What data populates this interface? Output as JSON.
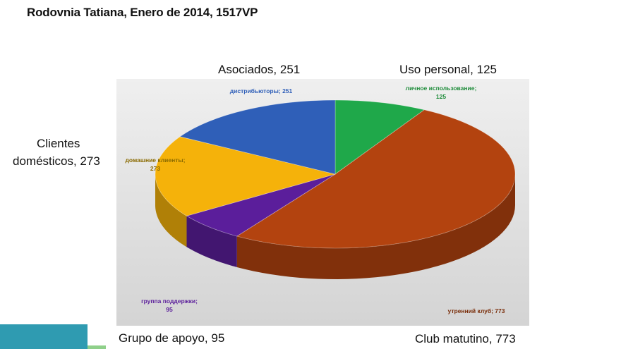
{
  "title": "Rodovnia Tatiana, Enero de 2014, 1517VP",
  "annotations": {
    "asociados": "Asociados, 251",
    "uso_personal": "Uso personal, 125",
    "clientes_line1": "Clientes",
    "clientes_line2": "domésticos, 273",
    "grupo": "Grupo de apoyo, 95",
    "club": "Club matutino, 773"
  },
  "chart_data": {
    "type": "pie",
    "title": "",
    "total_label": "1517VP",
    "slices": [
      {
        "label": "личное использование;",
        "value": 125,
        "color": "#1fa84a",
        "label_color": "#1e8c3a"
      },
      {
        "label": "утренний клуб;",
        "value": 773,
        "color": "#b3430f",
        "label_color": "#7a2e0a"
      },
      {
        "label": "группа поддержки;",
        "value": 95,
        "color": "#5b1e9b",
        "label_color": "#5b1e9b"
      },
      {
        "label": "домашние клиенты;",
        "value": 273,
        "color": "#f5b20a",
        "label_color": "#8a6a00"
      },
      {
        "label": "дистрибьюторы;",
        "value": 251,
        "color": "#2f5fb8",
        "label_color": "#2f5fb8"
      }
    ],
    "plot_background": "#e2e2e2"
  }
}
